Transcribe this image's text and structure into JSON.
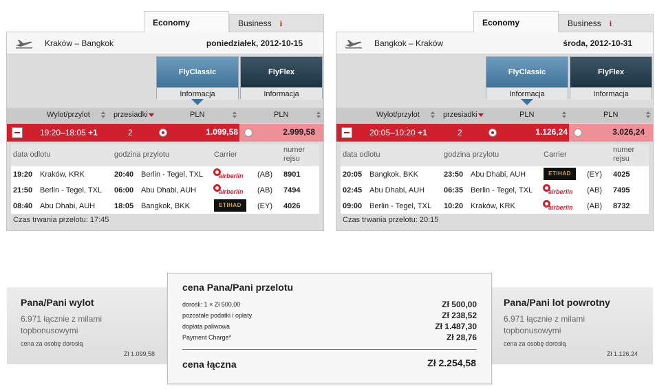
{
  "outbound": {
    "tabs": {
      "economy": "Economy",
      "business": "Business",
      "info_icon": "i"
    },
    "route": "Kraków – Bangkok",
    "date": "poniedziałek, 2012-10-15",
    "fares": {
      "classic": {
        "name": "FlyClassic",
        "info": "Informacja"
      },
      "flex": {
        "name": "FlyFlex",
        "info": "Informacja"
      }
    },
    "columns": {
      "departure_arrival": "Wylot/przylot",
      "stops": "przesiadki",
      "currency1": "PLN",
      "currency2": "PLN"
    },
    "selected": {
      "times": "19:20–18:05",
      "plus": "+1",
      "stops": "2",
      "price_classic": "1.099,58",
      "price_flex": "2.999,58"
    },
    "detail_headers": {
      "departure_date": "data odlotu",
      "arrival_time": "godzina przylotu",
      "carrier": "Carrier",
      "flight_number_1": "numer",
      "flight_number_2": "rejsu"
    },
    "legs": [
      {
        "dep_time": "19:20",
        "dep_airport": "Kraków, KRK",
        "arr_time": "20:40",
        "arr_airport": "Berlin - Tegel, TXL",
        "carrier": "airberlin",
        "code": "(AB)",
        "flight": "8901"
      },
      {
        "dep_time": "21:50",
        "dep_airport": "Berlin - Tegel, TXL",
        "arr_time": "06:00",
        "arr_airport": "Abu Dhabi, AUH",
        "carrier": "airberlin",
        "code": "(AB)",
        "flight": "7494"
      },
      {
        "dep_time": "08:40",
        "dep_airport": "Abu Dhabi, AUH",
        "arr_time": "18:05",
        "arr_airport": "Bangkok, BKK",
        "carrier": "ETIHAD",
        "code": "(EY)",
        "flight": "4026"
      }
    ],
    "duration": "Czas trwania przelotu: 17:45"
  },
  "inbound": {
    "tabs": {
      "economy": "Economy",
      "business": "Business",
      "info_icon": "i"
    },
    "route": "Bangkok – Kraków",
    "date": "środa, 2012-10-31",
    "fares": {
      "classic": {
        "name": "FlyClassic",
        "info": "Informacja"
      },
      "flex": {
        "name": "FlyFlex",
        "info": "Informacja"
      }
    },
    "columns": {
      "departure_arrival": "Wylot/przylot",
      "stops": "przesiadki",
      "currency1": "PLN",
      "currency2": "PLN"
    },
    "selected": {
      "times": "20:05–10:20",
      "plus": "+1",
      "stops": "2",
      "price_classic": "1.126,24",
      "price_flex": "3.026,24"
    },
    "detail_headers": {
      "departure_date": "data odlotu",
      "arrival_time": "godzina przylotu",
      "carrier": "Carrier",
      "flight_number_1": "numer",
      "flight_number_2": "rejsu"
    },
    "legs": [
      {
        "dep_time": "20:05",
        "dep_airport": "Bangkok, BKK",
        "arr_time": "23:50",
        "arr_airport": "Abu Dhabi, AUH",
        "carrier": "ETIHAD",
        "code": "(EY)",
        "flight": "4025"
      },
      {
        "dep_time": "02:45",
        "dep_airport": "Abu Dhabi, AUH",
        "arr_time": "06:35",
        "arr_airport": "Berlin - Tegel, TXL",
        "carrier": "airberlin",
        "code": "(AB)",
        "flight": "7495"
      },
      {
        "dep_time": "09:00",
        "dep_airport": "Berlin - Tegel, TXL",
        "arr_time": "10:20",
        "arr_airport": "Kraków, KRK",
        "carrier": "airberlin",
        "code": "(AB)",
        "flight": "8732"
      }
    ],
    "duration": "Czas trwania przelotu: 20:15"
  },
  "summary_outbound": {
    "title": "Pana/Pani wylot",
    "miles": "6.971 łącznie z milami topbonusowymi",
    "note": "cena za osobę dorosłą",
    "price": "Zł 1.099,58"
  },
  "summary_inbound": {
    "title": "Pana/Pani lot powrotny",
    "miles": "6.971 łącznie z milami topbonusowymi",
    "note": "cena za osobę dorosłą",
    "price": "Zł 1.126,24"
  },
  "price_breakdown": {
    "title": "cena Pana/Pani przelotu",
    "lines": [
      {
        "label": "dorośli: 1 × Zł 500,00",
        "value": "Zł 500,00"
      },
      {
        "label": "pozostałe podatki i opłaty",
        "value": "Zł 238,52"
      },
      {
        "label": "dopłata paliwowa",
        "value": "Zł 1.487,30"
      },
      {
        "label": "Payment Charge*",
        "value": "Zł 28,76"
      }
    ],
    "total_label": "cena łączna",
    "total_value": "Zł 2.254,58"
  },
  "colors": {
    "selected_row": "#d0202e",
    "flex_cell": "#ef8f97",
    "classic": "#4f82a6",
    "flex": "#2a4252"
  }
}
